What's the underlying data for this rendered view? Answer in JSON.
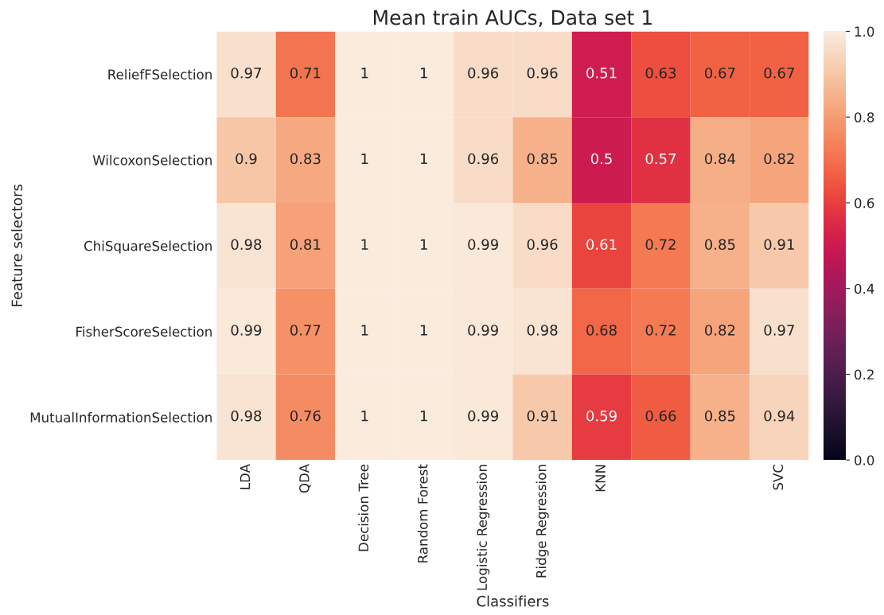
{
  "chart_data": {
    "type": "heatmap",
    "title": "Mean train AUCs, Data set 1",
    "xlabel": "Classifiers",
    "ylabel": "Feature selectors",
    "categories": [
      "LDA",
      "QDA",
      "Decision Tree",
      "Random Forest",
      "Logistic Regression",
      "Ridge Regression",
      "KNN",
      null,
      null,
      "SVC"
    ],
    "y_categories": [
      "ReliefFSelection",
      "WilcoxonSelection",
      "ChiSquareSelection",
      "FisherScoreSelection",
      "MutualInformationSelection"
    ],
    "cells": [
      [
        0.97,
        0.71,
        1,
        1,
        0.96,
        0.96,
        0.51,
        0.63,
        0.67,
        0.67
      ],
      [
        0.9,
        0.83,
        1,
        1,
        0.96,
        0.85,
        0.5,
        0.57,
        0.84,
        0.82
      ],
      [
        0.98,
        0.81,
        1,
        1,
        0.99,
        0.96,
        0.61,
        0.72,
        0.85,
        0.91
      ],
      [
        0.99,
        0.77,
        1,
        1,
        0.99,
        0.98,
        0.68,
        0.72,
        0.82,
        0.97
      ],
      [
        0.98,
        0.76,
        1,
        1,
        0.99,
        0.91,
        0.59,
        0.66,
        0.85,
        0.94
      ]
    ],
    "clim": [
      0,
      1
    ],
    "cticks": [
      {
        "value": 0,
        "label": "0.0"
      },
      0.2,
      0.4,
      0.6,
      0.8,
      {
        "value": 1,
        "label": "1.0"
      }
    ],
    "data_labels": true
  }
}
